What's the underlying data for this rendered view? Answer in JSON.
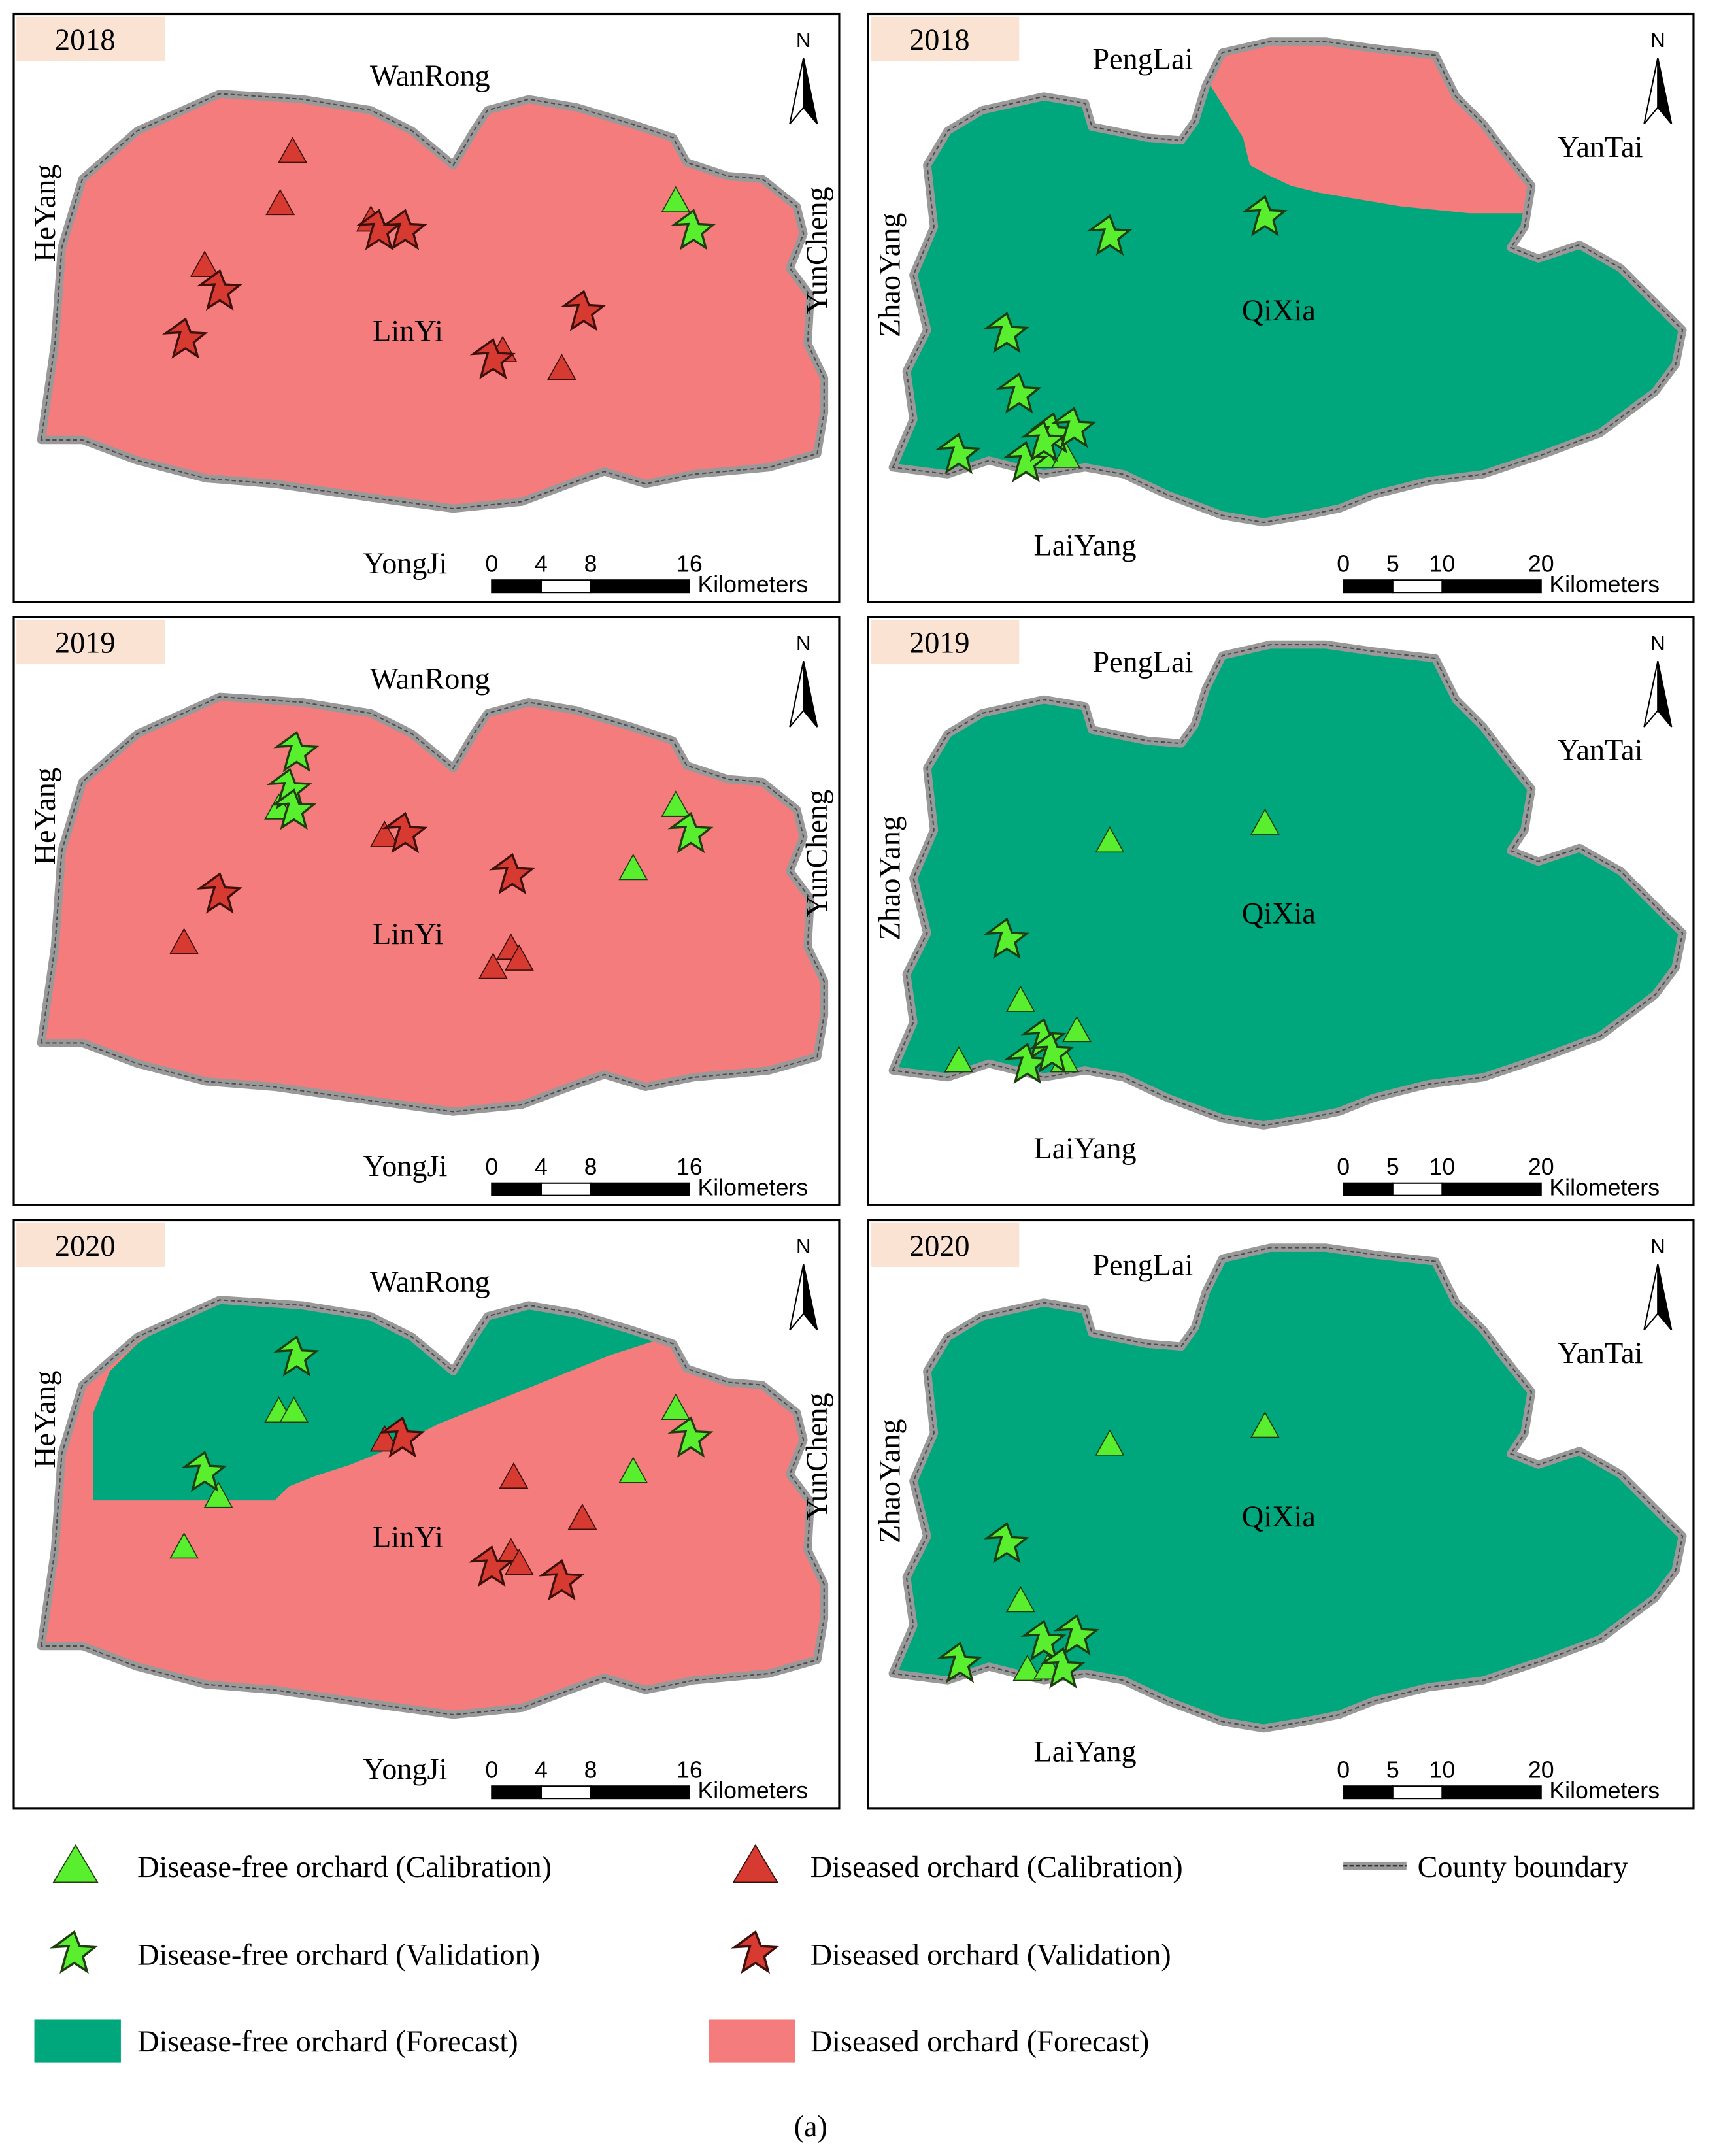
{
  "colors": {
    "disease_free_forecast": "#00a67c",
    "diseased_forecast": "#f47c7c",
    "disease_free_marker": "#5aef2e",
    "diseased_marker": "#d63a30",
    "boundary": "#999999",
    "year_label_bg": "#fbe3d4"
  },
  "legend": {
    "df_cal": "Disease-free orchard (Calibration)",
    "d_cal": "Diseased orchard (Calibration)",
    "boundary": "County boundary",
    "df_val": "Disease-free orchard (Validation)",
    "d_val": "Diseased orchard (Validation)",
    "df_fc": "Disease-free orchard (Forecast)",
    "d_fc": "Diseased orchard (Forecast)"
  },
  "caption": "(a)",
  "north_label": "N",
  "panels": [
    {
      "year": "2018",
      "county": "LinYi",
      "neighbors": {
        "top": "WanRong",
        "left": "HeYang",
        "right": "YunCheng",
        "bottom": "YongJi"
      },
      "scale": {
        "ticks": [
          "0",
          "4",
          "8",
          "16"
        ],
        "unit": "Kilometers"
      },
      "forecast": "diseased",
      "markers": {
        "df_cal": [
          [
            492,
            146
          ]
        ],
        "d_cal": [
          [
            213,
            110
          ],
          [
            204,
            148
          ],
          [
            149,
            193
          ],
          [
            270,
            160
          ],
          [
            366,
            255
          ],
          [
            409,
            268
          ]
        ],
        "df_val": [
          [
            505,
            168
          ]
        ],
        "d_val": [
          [
            276,
            168
          ],
          [
            295,
            168
          ],
          [
            160,
            212
          ],
          [
            135,
            247
          ],
          [
            425,
            227
          ],
          [
            359,
            262
          ]
        ]
      }
    },
    {
      "year": "2018",
      "county": "QiXia",
      "neighbors": {
        "top": "PengLai",
        "left": "ZhaoYang",
        "right": "YanTai",
        "bottom": "LaiYang"
      },
      "scale": {
        "ticks": [
          "0",
          "5",
          "10",
          "20"
        ],
        "unit": "Kilometers"
      },
      "forecast": "mixed-2018",
      "markers": {
        "df_cal": [
          [
            760,
            332
          ],
          [
            776,
            332
          ]
        ],
        "d_cal": [],
        "df_val": [
          [
            808,
            172
          ],
          [
            921,
            158
          ],
          [
            733,
            243
          ],
          [
            742,
            287
          ],
          [
            698,
            331
          ],
          [
            747,
            337
          ],
          [
            767,
            316
          ],
          [
            782,
            312
          ],
          [
            760,
            322
          ]
        ],
        "d_val": []
      }
    },
    {
      "year": "2019",
      "county": "LinYi",
      "neighbors": {
        "top": "WanRong",
        "left": "HeYang",
        "right": "YunCheng",
        "bottom": "YongJi"
      },
      "scale": {
        "ticks": [
          "0",
          "4",
          "8",
          "16"
        ],
        "unit": "Kilometers"
      },
      "forecast": "diseased",
      "markers": {
        "df_cal": [
          [
            492,
            586
          ],
          [
            461,
            632
          ],
          [
            203,
            588
          ]
        ],
        "d_cal": [
          [
            280,
            608
          ],
          [
            134,
            686
          ],
          [
            359,
            704
          ],
          [
            372,
            690
          ],
          [
            378,
            698
          ]
        ],
        "df_val": [
          [
            216,
            548
          ],
          [
            211,
            575
          ],
          [
            214,
            590
          ],
          [
            503,
            607
          ]
        ],
        "d_val": [
          [
            295,
            607
          ],
          [
            160,
            651
          ],
          [
            373,
            637
          ]
        ]
      }
    },
    {
      "year": "2019",
      "county": "QiXia",
      "neighbors": {
        "top": "PengLai",
        "left": "ZhaoYang",
        "right": "YanTai",
        "bottom": "LaiYang"
      },
      "scale": {
        "ticks": [
          "0",
          "5",
          "10",
          "20"
        ],
        "unit": "Kilometers"
      },
      "forecast": "disease-free",
      "markers": {
        "df_cal": [
          [
            808,
            612
          ],
          [
            921,
            599
          ],
          [
            743,
            728
          ],
          [
            698,
            772
          ],
          [
            784,
            750
          ],
          [
            775,
            772
          ]
        ],
        "d_cal": [],
        "df_val": [
          [
            733,
            684
          ],
          [
            760,
            757
          ],
          [
            748,
            775
          ],
          [
            766,
            767
          ]
        ],
        "d_val": []
      }
    },
    {
      "year": "2020",
      "county": "LinYi",
      "neighbors": {
        "top": "WanRong",
        "left": "HeYang",
        "right": "YunCheng",
        "bottom": "YongJi"
      },
      "scale": {
        "ticks": [
          "0",
          "4",
          "8",
          "16"
        ],
        "unit": "Kilometers"
      },
      "forecast": "mixed-2020",
      "markers": {
        "df_cal": [
          [
            492,
            1025
          ],
          [
            461,
            1071
          ],
          [
            203,
            1027
          ],
          [
            214,
            1027
          ],
          [
            159,
            1089
          ],
          [
            134,
            1126
          ]
        ],
        "d_cal": [
          [
            280,
            1048
          ],
          [
            374,
            1075
          ],
          [
            424,
            1105
          ],
          [
            372,
            1130
          ],
          [
            378,
            1138
          ]
        ],
        "df_val": [
          [
            216,
            988
          ],
          [
            149,
            1072
          ],
          [
            503,
            1047
          ]
        ],
        "d_val": [
          [
            293,
            1047
          ],
          [
            358,
            1141
          ],
          [
            409,
            1151
          ]
        ]
      }
    },
    {
      "year": "2020",
      "county": "QiXia",
      "neighbors": {
        "top": "PengLai",
        "left": "ZhaoYang",
        "right": "YanTai",
        "bottom": "LaiYang"
      },
      "scale": {
        "ticks": [
          "0",
          "5",
          "10",
          "20"
        ],
        "unit": "Kilometers"
      },
      "forecast": "disease-free",
      "markers": {
        "df_cal": [
          [
            808,
            1051
          ],
          [
            921,
            1038
          ],
          [
            743,
            1165
          ],
          [
            748,
            1215
          ],
          [
            763,
            1214
          ]
        ],
        "d_cal": [],
        "df_val": [
          [
            733,
            1124
          ],
          [
            699,
            1211
          ],
          [
            760,
            1195
          ],
          [
            784,
            1191
          ],
          [
            774,
            1215
          ]
        ],
        "d_val": []
      }
    }
  ]
}
